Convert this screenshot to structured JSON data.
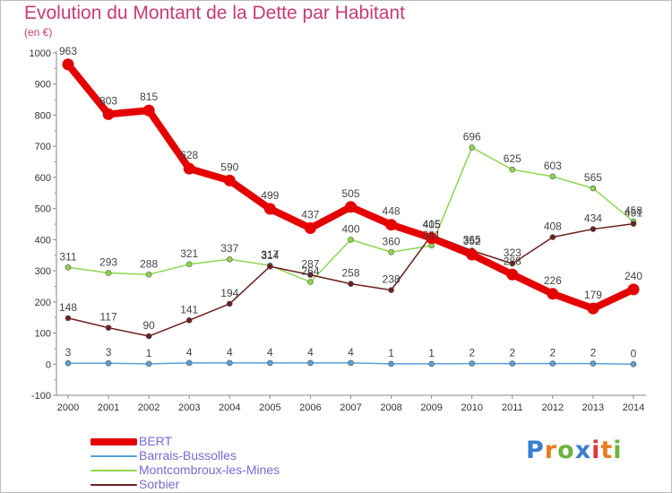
{
  "chart_data": {
    "type": "line",
    "title": "Evolution du Montant de la Dette par Habitant",
    "unit_label": "(en €)",
    "x": [
      "2000",
      "2001",
      "2002",
      "2003",
      "2004",
      "2005",
      "2006",
      "2007",
      "2008",
      "2009",
      "2010",
      "2011",
      "2012",
      "2013",
      "2014"
    ],
    "ylim": [
      -100,
      1000
    ],
    "yticks": [
      -100,
      0,
      100,
      200,
      300,
      400,
      500,
      600,
      700,
      800,
      900,
      1000
    ],
    "grid": false,
    "legend_position": "bottom-left",
    "series": [
      {
        "name": "BERT",
        "color": "#e50000",
        "emphasis": true,
        "values": [
          963,
          803,
          815,
          628,
          590,
          499,
          437,
          505,
          448,
          405,
          352,
          288,
          226,
          179,
          240
        ]
      },
      {
        "name": "Barrais-Bussolles",
        "color": "#5b9fd6",
        "values": [
          3,
          3,
          1,
          4,
          4,
          4,
          4,
          4,
          1,
          1,
          2,
          2,
          2,
          2,
          0
        ]
      },
      {
        "name": "Montcombroux-les-Mines",
        "color": "#8ed64e",
        "values": [
          311,
          293,
          288,
          321,
          337,
          317,
          264,
          400,
          360,
          381,
          696,
          625,
          603,
          565,
          458
        ]
      },
      {
        "name": "Sorbier",
        "color": "#6e1f1f",
        "values": [
          148,
          117,
          90,
          141,
          194,
          314,
          287,
          258,
          238,
          415,
          365,
          323,
          408,
          434,
          451
        ]
      }
    ]
  },
  "brand": {
    "letters": [
      "P",
      "r",
      "o",
      "x",
      "i",
      "t",
      "i"
    ],
    "colors": [
      "#3a7fd0",
      "#e87d1e",
      "#6cb33e",
      "#3a7fd0",
      "#e03a3a",
      "#e87d1e",
      "#6cb33e"
    ]
  }
}
